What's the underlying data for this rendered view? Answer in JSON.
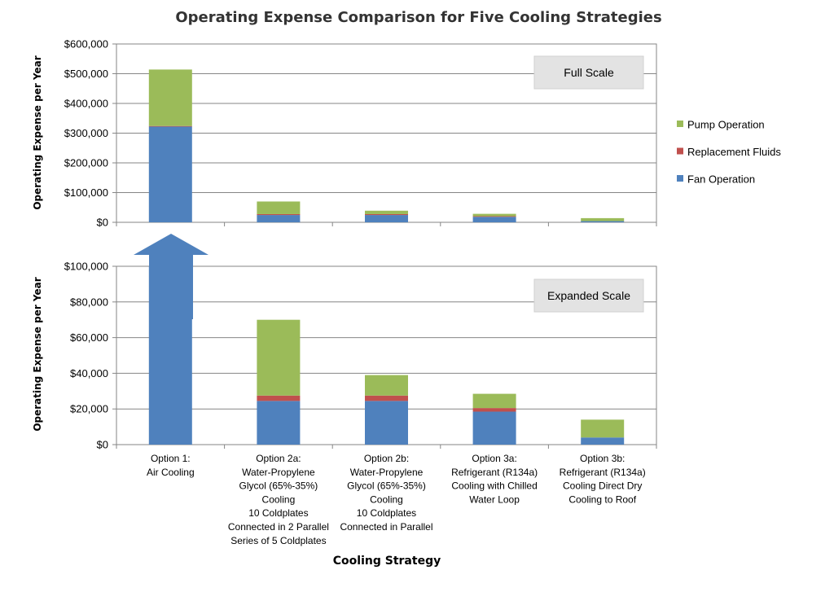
{
  "chart_data": {
    "type": "bar",
    "stacked": true,
    "title": "Operating Expense Comparison for Five Cooling Strategies",
    "xlabel": "Cooling Strategy",
    "ylabel": "Operating Expense per Year",
    "categories": [
      [
        "Option 1:",
        "Air Cooling"
      ],
      [
        "Option 2a:",
        "Water-Propylene",
        "Glycol (65%-35%)",
        "Cooling",
        "10 Coldplates",
        "Connected in 2 Parallel",
        "Series of 5 Coldplates"
      ],
      [
        "Option 2b:",
        "Water-Propylene",
        "Glycol (65%-35%)",
        "Cooling",
        "10 Coldplates",
        "Connected in Parallel"
      ],
      [
        "Option 3a:",
        "Refrigerant (R134a)",
        "Cooling with Chilled",
        "Water Loop"
      ],
      [
        "Option 3b:",
        "Refrigerant (R134a)",
        "Cooling Direct Dry",
        "Cooling to Roof"
      ]
    ],
    "series": [
      {
        "name": "Fan Operation",
        "color": "#4F81BD",
        "values": [
          322000,
          24500,
          24500,
          18500,
          4000
        ]
      },
      {
        "name": "Replacement Fluids",
        "color": "#C0504D",
        "values": [
          2000,
          3000,
          3000,
          2000,
          0
        ]
      },
      {
        "name": "Pump Operation",
        "color": "#9BBB59",
        "values": [
          190000,
          42500,
          11500,
          8000,
          10000
        ]
      }
    ],
    "panels": [
      {
        "label": "Full Scale",
        "ylim": [
          0,
          600000
        ],
        "ticks": [
          "$0",
          "$100,000",
          "$200,000",
          "$300,000",
          "$400,000",
          "$500,000",
          "$600,000"
        ]
      },
      {
        "label": "Expanded Scale",
        "ylim": [
          0,
          100000
        ],
        "ticks": [
          "$0",
          "$20,000",
          "$40,000",
          "$60,000",
          "$80,000",
          "$100,000"
        ]
      }
    ],
    "legend_position": "right",
    "grid": true,
    "annotation": "arrow-up (Option 1 exceeds expanded scale)"
  }
}
